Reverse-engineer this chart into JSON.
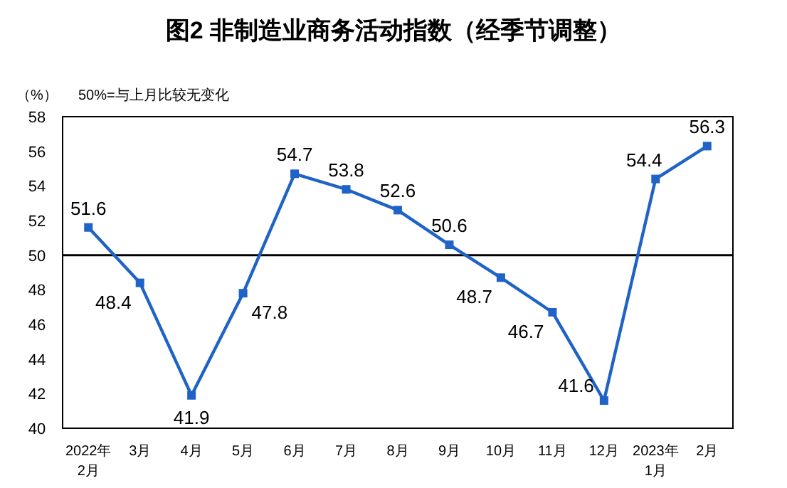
{
  "chart_data": {
    "type": "line",
    "title": "图2  非制造业商务活动指数（经季节调整）",
    "ylabel": "（%）",
    "annotations": [
      "50%=与上月比较无变化"
    ],
    "categories": [
      "2022年\n2月",
      "3月",
      "4月",
      "5月",
      "6月",
      "7月",
      "8月",
      "9月",
      "10月",
      "11月",
      "12月",
      "2023年\n1月",
      "2月"
    ],
    "series": [
      {
        "color": "#1f63c6",
        "values": [
          51.6,
          48.4,
          41.9,
          47.8,
          54.7,
          53.8,
          52.6,
          50.6,
          48.7,
          46.7,
          41.6,
          54.4,
          56.3
        ]
      }
    ],
    "ylim": [
      40,
      58
    ],
    "yticks": [
      40,
      42,
      44,
      46,
      48,
      50,
      52,
      54,
      56,
      58
    ],
    "ref_lines": [
      {
        "axis": "y",
        "value": 50,
        "color": "#000000"
      }
    ],
    "data_labels": true,
    "marker": "square",
    "line_style": "solid",
    "grid": false
  }
}
